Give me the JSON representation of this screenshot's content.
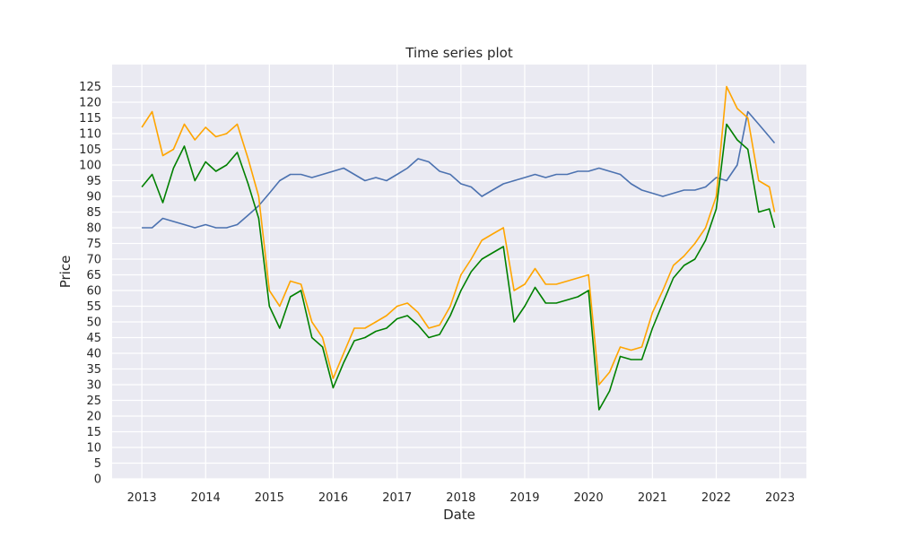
{
  "chart_data": {
    "type": "line",
    "title": "Time series plot",
    "xlabel": "Date",
    "ylabel": "Price",
    "xlim": [
      "2012-07-15",
      "2023-06-01"
    ],
    "ylim": [
      0,
      132
    ],
    "x_ticks": [
      "2013",
      "2014",
      "2015",
      "2016",
      "2017",
      "2018",
      "2019",
      "2020",
      "2021",
      "2022",
      "2023"
    ],
    "y_ticks": [
      0,
      5,
      10,
      15,
      20,
      25,
      30,
      35,
      40,
      45,
      50,
      55,
      60,
      65,
      70,
      75,
      80,
      85,
      90,
      95,
      100,
      105,
      110,
      115,
      120,
      125
    ],
    "grid": true,
    "colors": {
      "background": "#eaeaf2",
      "grid": "#ffffff"
    },
    "series": [
      {
        "color": "#4c72b0",
        "x": [
          "2013-01-01",
          "2013-03-01",
          "2013-05-01",
          "2013-07-01",
          "2013-09-01",
          "2013-11-01",
          "2014-01-01",
          "2014-03-01",
          "2014-05-01",
          "2014-07-01",
          "2014-09-01",
          "2014-11-01",
          "2015-01-01",
          "2015-03-01",
          "2015-05-01",
          "2015-07-01",
          "2015-09-01",
          "2015-11-01",
          "2016-01-01",
          "2016-03-01",
          "2016-05-01",
          "2016-07-01",
          "2016-09-01",
          "2016-11-01",
          "2017-01-01",
          "2017-03-01",
          "2017-05-01",
          "2017-07-01",
          "2017-09-01",
          "2017-11-01",
          "2018-01-01",
          "2018-03-01",
          "2018-05-01",
          "2018-07-01",
          "2018-09-01",
          "2018-11-01",
          "2019-01-01",
          "2019-03-01",
          "2019-05-01",
          "2019-07-01",
          "2019-09-01",
          "2019-11-01",
          "2020-01-01",
          "2020-03-01",
          "2020-05-01",
          "2020-07-01",
          "2020-09-01",
          "2020-11-01",
          "2021-01-01",
          "2021-03-01",
          "2021-05-01",
          "2021-07-01",
          "2021-09-01",
          "2021-11-01",
          "2022-01-01",
          "2022-03-01",
          "2022-05-01",
          "2022-07-01",
          "2022-09-01",
          "2022-11-01",
          "2022-12-01"
        ],
        "y": [
          80,
          80,
          83,
          82,
          81,
          80,
          81,
          80,
          80,
          81,
          84,
          87,
          91,
          95,
          97,
          97,
          96,
          97,
          98,
          99,
          97,
          95,
          96,
          95,
          97,
          99,
          102,
          101,
          98,
          97,
          94,
          93,
          90,
          92,
          94,
          95,
          96,
          97,
          96,
          97,
          97,
          98,
          98,
          99,
          98,
          97,
          94,
          92,
          91,
          90,
          91,
          92,
          92,
          93,
          96,
          95,
          100,
          117,
          113,
          109,
          107
        ]
      },
      {
        "color": "#ffa500",
        "x": [
          "2013-01-01",
          "2013-03-01",
          "2013-05-01",
          "2013-07-01",
          "2013-09-01",
          "2013-11-01",
          "2014-01-01",
          "2014-03-01",
          "2014-05-01",
          "2014-07-01",
          "2014-09-01",
          "2014-11-01",
          "2015-01-01",
          "2015-03-01",
          "2015-05-01",
          "2015-07-01",
          "2015-09-01",
          "2015-11-01",
          "2016-01-01",
          "2016-03-01",
          "2016-05-01",
          "2016-07-01",
          "2016-09-01",
          "2016-11-01",
          "2017-01-01",
          "2017-03-01",
          "2017-05-01",
          "2017-07-01",
          "2017-09-01",
          "2017-11-01",
          "2018-01-01",
          "2018-03-01",
          "2018-05-01",
          "2018-07-01",
          "2018-09-01",
          "2018-11-01",
          "2019-01-01",
          "2019-03-01",
          "2019-05-01",
          "2019-07-01",
          "2019-09-01",
          "2019-11-01",
          "2020-01-01",
          "2020-03-01",
          "2020-05-01",
          "2020-07-01",
          "2020-09-01",
          "2020-11-01",
          "2021-01-01",
          "2021-03-01",
          "2021-05-01",
          "2021-07-01",
          "2021-09-01",
          "2021-11-01",
          "2022-01-01",
          "2022-03-01",
          "2022-05-01",
          "2022-07-01",
          "2022-09-01",
          "2022-11-01",
          "2022-12-01"
        ],
        "y": [
          112,
          117,
          103,
          105,
          113,
          108,
          112,
          109,
          110,
          113,
          102,
          90,
          60,
          55,
          63,
          62,
          50,
          45,
          32,
          40,
          48,
          48,
          50,
          52,
          55,
          56,
          53,
          48,
          49,
          55,
          65,
          70,
          76,
          78,
          80,
          60,
          62,
          67,
          62,
          62,
          63,
          64,
          65,
          30,
          34,
          42,
          41,
          42,
          53,
          60,
          68,
          71,
          75,
          80,
          90,
          125,
          118,
          115,
          95,
          93,
          85
        ]
      },
      {
        "color": "#008000",
        "x": [
          "2013-01-01",
          "2013-03-01",
          "2013-05-01",
          "2013-07-01",
          "2013-09-01",
          "2013-11-01",
          "2014-01-01",
          "2014-03-01",
          "2014-05-01",
          "2014-07-01",
          "2014-09-01",
          "2014-11-01",
          "2015-01-01",
          "2015-03-01",
          "2015-05-01",
          "2015-07-01",
          "2015-09-01",
          "2015-11-01",
          "2016-01-01",
          "2016-03-01",
          "2016-05-01",
          "2016-07-01",
          "2016-09-01",
          "2016-11-01",
          "2017-01-01",
          "2017-03-01",
          "2017-05-01",
          "2017-07-01",
          "2017-09-01",
          "2017-11-01",
          "2018-01-01",
          "2018-03-01",
          "2018-05-01",
          "2018-07-01",
          "2018-09-01",
          "2018-11-01",
          "2019-01-01",
          "2019-03-01",
          "2019-05-01",
          "2019-07-01",
          "2019-09-01",
          "2019-11-01",
          "2020-01-01",
          "2020-03-01",
          "2020-05-01",
          "2020-07-01",
          "2020-09-01",
          "2020-11-01",
          "2021-01-01",
          "2021-03-01",
          "2021-05-01",
          "2021-07-01",
          "2021-09-01",
          "2021-11-01",
          "2022-01-01",
          "2022-03-01",
          "2022-05-01",
          "2022-07-01",
          "2022-09-01",
          "2022-11-01",
          "2022-12-01"
        ],
        "y": [
          93,
          97,
          88,
          99,
          106,
          95,
          101,
          98,
          100,
          104,
          94,
          83,
          55,
          48,
          58,
          60,
          45,
          42,
          29,
          37,
          44,
          45,
          47,
          48,
          51,
          52,
          49,
          45,
          46,
          52,
          60,
          66,
          70,
          72,
          74,
          50,
          55,
          61,
          56,
          56,
          57,
          58,
          60,
          22,
          28,
          39,
          38,
          38,
          48,
          56,
          64,
          68,
          70,
          76,
          86,
          113,
          108,
          105,
          85,
          86,
          80
        ]
      }
    ]
  }
}
